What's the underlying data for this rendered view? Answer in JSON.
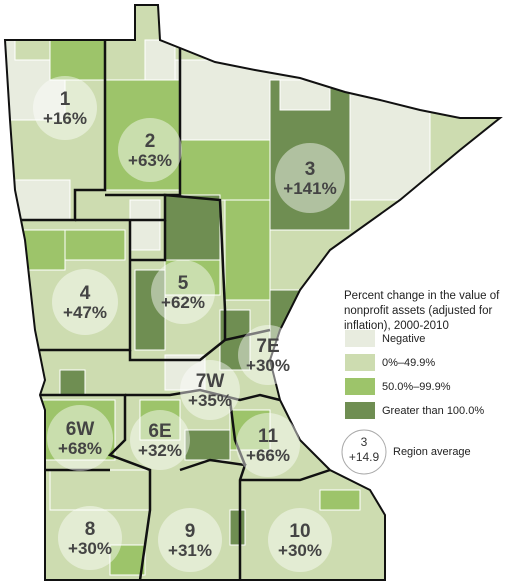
{
  "legend": {
    "title": "Percent change in the value of nonprofit assets (adjusted for inflation), 2000-2010",
    "items": [
      {
        "label": "Negative",
        "color": "#e8ecdf"
      },
      {
        "label": "0%–49.9%",
        "color": "#cddcb0"
      },
      {
        "label": "50.0%–99.9%",
        "color": "#9dc46a"
      },
      {
        "label": "Greater than 100.0%",
        "color": "#6f8e52"
      }
    ],
    "sample": {
      "region": "3",
      "value": "+14.9",
      "label": "Region average"
    }
  },
  "regions": [
    {
      "id": "1",
      "change": "+16%"
    },
    {
      "id": "2",
      "change": "+63%"
    },
    {
      "id": "3",
      "change": "+141%"
    },
    {
      "id": "4",
      "change": "+47%"
    },
    {
      "id": "5",
      "change": "+62%"
    },
    {
      "id": "7E",
      "change": "+30%"
    },
    {
      "id": "7W",
      "change": "+35%"
    },
    {
      "id": "6W",
      "change": "+68%"
    },
    {
      "id": "6E",
      "change": "+32%"
    },
    {
      "id": "11",
      "change": "+66%"
    },
    {
      "id": "8",
      "change": "+30%"
    },
    {
      "id": "9",
      "change": "+31%"
    },
    {
      "id": "10",
      "change": "+30%"
    }
  ]
}
